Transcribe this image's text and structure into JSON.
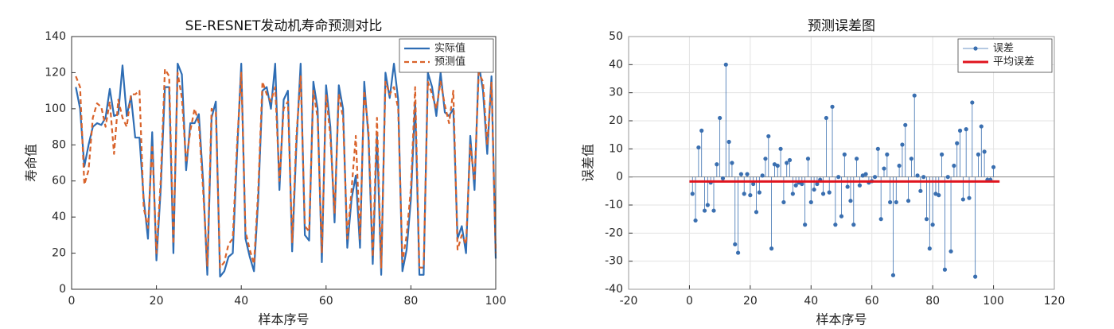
{
  "chart_data": [
    {
      "type": "line",
      "title": "SE-RESNET发动机寿命预测对比",
      "xlabel": "样本序号",
      "ylabel": "寿命值",
      "xlim": [
        0,
        100
      ],
      "xticks": [
        0,
        20,
        40,
        60,
        80,
        100
      ],
      "ylim": [
        0,
        140
      ],
      "yticks": [
        0,
        20,
        40,
        60,
        80,
        100,
        120,
        140
      ],
      "grid": false,
      "legend": "upper right",
      "x": [
        1,
        2,
        3,
        4,
        5,
        6,
        7,
        8,
        9,
        10,
        11,
        12,
        13,
        14,
        15,
        16,
        17,
        18,
        19,
        20,
        21,
        22,
        23,
        24,
        25,
        26,
        27,
        28,
        29,
        30,
        31,
        32,
        33,
        34,
        35,
        36,
        37,
        38,
        39,
        40,
        41,
        42,
        43,
        44,
        45,
        46,
        47,
        48,
        49,
        50,
        51,
        52,
        53,
        54,
        55,
        56,
        57,
        58,
        59,
        60,
        61,
        62,
        63,
        64,
        65,
        66,
        67,
        68,
        69,
        70,
        71,
        72,
        73,
        74,
        75,
        76,
        77,
        78,
        79,
        80,
        81,
        82,
        83,
        84,
        85,
        86,
        87,
        88,
        89,
        90,
        91,
        92,
        93,
        94,
        95,
        96,
        97,
        98,
        99,
        100
      ],
      "series": [
        {
          "name": "实际值",
          "type": "line",
          "color": "#2e6db4",
          "dashed": false,
          "values": [
            112,
            100,
            68,
            80,
            90,
            92,
            91,
            95,
            111,
            96,
            97,
            124,
            96,
            107,
            84,
            84,
            50,
            28,
            87,
            16,
            55,
            112,
            112,
            20,
            125,
            119,
            66,
            92,
            92,
            97,
            60,
            8,
            95,
            104,
            7,
            10,
            18,
            20,
            75,
            125,
            28,
            18,
            10,
            50,
            110,
            112,
            100,
            125,
            55,
            105,
            110,
            21,
            80,
            125,
            30,
            27,
            115,
            100,
            15,
            113,
            90,
            37,
            113,
            100,
            23,
            50,
            63,
            23,
            115,
            84,
            14,
            85,
            8,
            120,
            106,
            125,
            105,
            10,
            22,
            50,
            104,
            8,
            8,
            120,
            112,
            96,
            120,
            98,
            96,
            100,
            28,
            35,
            20,
            85,
            55,
            125,
            110,
            75,
            118,
            17
          ]
        },
        {
          "name": "预测值",
          "type": "line",
          "color": "#d9632b",
          "dashed": true,
          "values": [
            118,
            112,
            58,
            66,
            95,
            103,
            101,
            90,
            104,
            75,
            105,
            95,
            90,
            108,
            108,
            110,
            45,
            34,
            80,
            20,
            60,
            122,
            118,
            25,
            120,
            106,
            70,
            88,
            100,
            92,
            55,
            13,
            100,
            98,
            12,
            15,
            25,
            28,
            80,
            120,
            32,
            22,
            14,
            55,
            115,
            108,
            104,
            112,
            60,
            100,
            104,
            26,
            85,
            118,
            35,
            32,
            110,
            95,
            20,
            108,
            85,
            42,
            108,
            95,
            28,
            55,
            85,
            28,
            110,
            88,
            18,
            95,
            12,
            115,
            108,
            112,
            100,
            15,
            30,
            56,
            112,
            12,
            12,
            115,
            108,
            100,
            115,
            102,
            92,
            110,
            22,
            30,
            25,
            80,
            60,
            120,
            115,
            80,
            115,
            20
          ]
        }
      ]
    },
    {
      "type": "stem",
      "title": "预测误差图",
      "xlabel": "样本序号",
      "ylabel": "误差值",
      "xlim": [
        -20,
        120
      ],
      "xticks": [
        -20,
        0,
        20,
        40,
        60,
        80,
        100,
        120
      ],
      "ylim": [
        -40,
        50
      ],
      "yticks": [
        -40,
        -30,
        -20,
        -10,
        0,
        10,
        20,
        30,
        40,
        50
      ],
      "grid": true,
      "legend": "upper right",
      "x": [
        1,
        2,
        3,
        4,
        5,
        6,
        7,
        8,
        9,
        10,
        11,
        12,
        13,
        14,
        15,
        16,
        17,
        18,
        19,
        20,
        21,
        22,
        23,
        24,
        25,
        26,
        27,
        28,
        29,
        30,
        31,
        32,
        33,
        34,
        35,
        36,
        37,
        38,
        39,
        40,
        41,
        42,
        43,
        44,
        45,
        46,
        47,
        48,
        49,
        50,
        51,
        52,
        53,
        54,
        55,
        56,
        57,
        58,
        59,
        60,
        61,
        62,
        63,
        64,
        65,
        66,
        67,
        68,
        69,
        70,
        71,
        72,
        73,
        74,
        75,
        76,
        77,
        78,
        79,
        80,
        81,
        82,
        83,
        84,
        85,
        86,
        87,
        88,
        89,
        90,
        91,
        92,
        93,
        94,
        95,
        96,
        97,
        98,
        99,
        100
      ],
      "series": [
        {
          "name": "误差",
          "type": "stem",
          "color": "#3a6fb0",
          "values": [
            -6,
            -15.5,
            10.5,
            16.5,
            -12,
            -10,
            -2,
            -12,
            4.5,
            21,
            -0.5,
            40,
            12.5,
            5,
            -24,
            -27,
            1,
            -6,
            1,
            -6.5,
            -2.5,
            -12.5,
            -5.5,
            0.5,
            6.5,
            14.5,
            -25.5,
            4.5,
            4,
            10,
            -9,
            5,
            6,
            -6,
            -3,
            -2,
            -2.5,
            -17,
            6.5,
            -9,
            -4.5,
            -2.5,
            -1,
            -6,
            21,
            -5.5,
            25,
            -17,
            0,
            -14,
            8,
            -3.5,
            -8.5,
            -17,
            6.5,
            -3,
            0.5,
            1,
            -2,
            -1.5,
            0,
            10,
            -15,
            3,
            8,
            -9,
            -35,
            -9,
            4,
            11.5,
            18.5,
            -8.5,
            6.5,
            29,
            0.5,
            -5,
            0,
            -15,
            -25.5,
            -17,
            -6,
            -6.5,
            8,
            -33,
            0,
            -26.5,
            4,
            12,
            16.5,
            -8,
            17,
            -7.5,
            26.5,
            -35.5,
            8,
            18,
            9,
            -1,
            -1,
            3.5
          ]
        },
        {
          "name": "平均误差",
          "type": "line",
          "color": "#e0141e",
          "dashed": false,
          "width": 3,
          "x": [
            0,
            102
          ],
          "values": [
            -1.6,
            -1.6
          ]
        }
      ]
    }
  ]
}
